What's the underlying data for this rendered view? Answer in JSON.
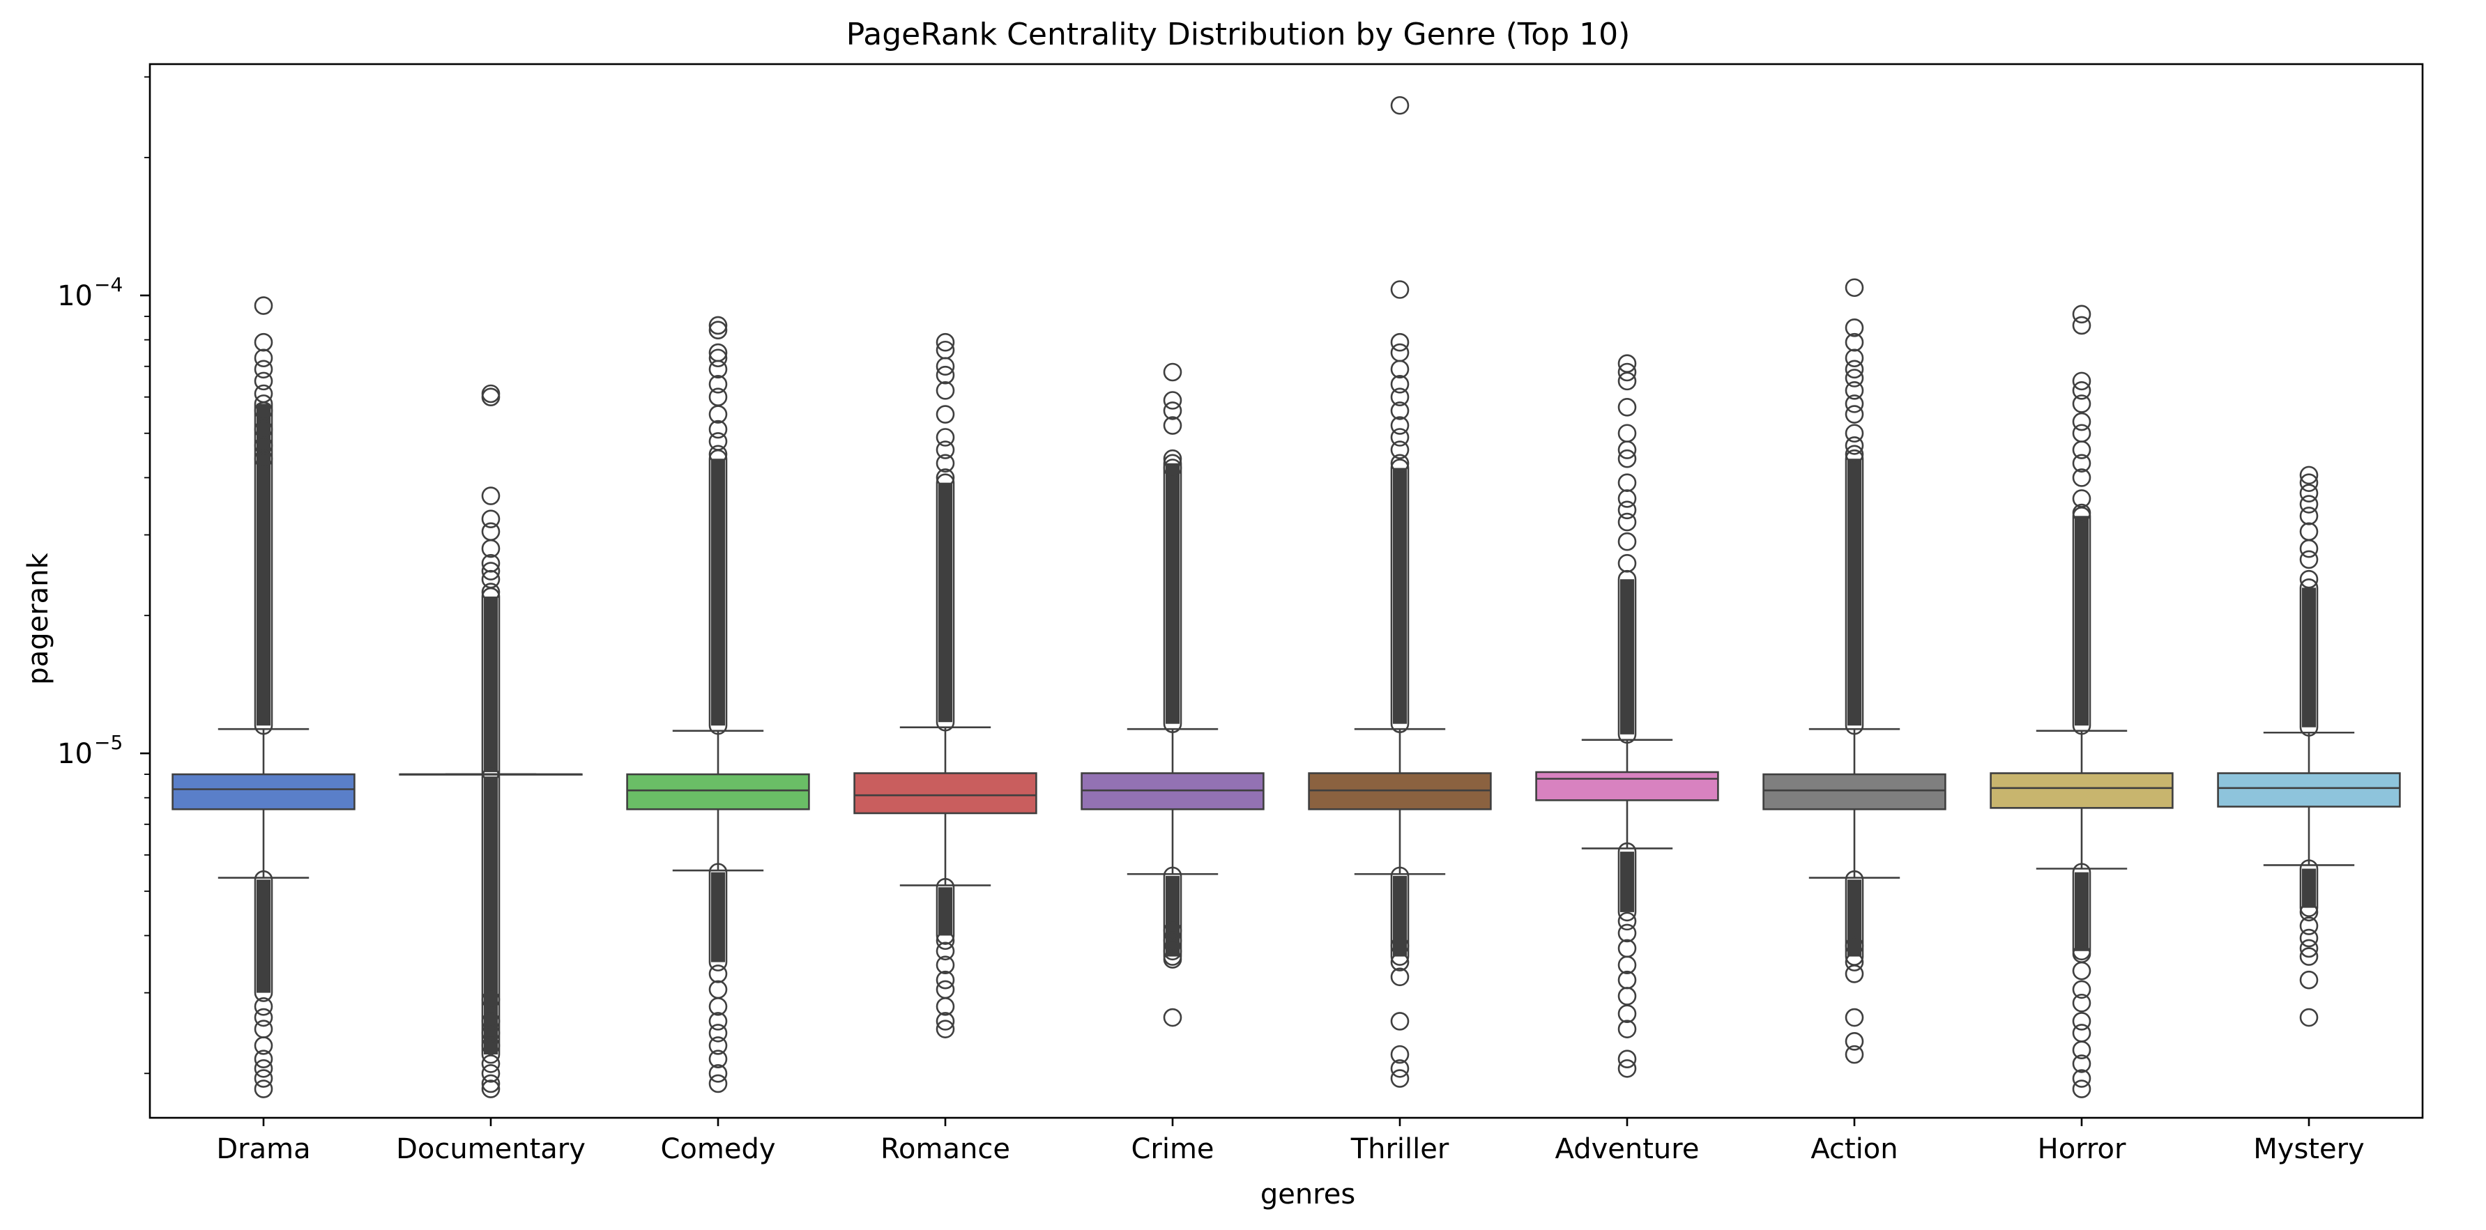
{
  "chart_data": {
    "type": "box",
    "title": "PageRank Centrality Distribution by Genre (Top 10)",
    "xlabel": "genres",
    "ylabel": "pagerank",
    "yscale": "log",
    "ylim": [
      1.6e-06,
      0.00032
    ],
    "y_major_ticks": [
      {
        "value": 1e-05,
        "base": "10",
        "exp": "−5"
      },
      {
        "value": 0.0001,
        "base": "10",
        "exp": "−4"
      }
    ],
    "grid": false,
    "categories": [
      "Drama",
      "Documentary",
      "Comedy",
      "Romance",
      "Crime",
      "Thriller",
      "Adventure",
      "Action",
      "Horror",
      "Mystery"
    ],
    "boxes": [
      {
        "name": "Drama",
        "color": "#5a7fc9",
        "q1": 7.55e-06,
        "median": 8.35e-06,
        "q3": 9e-06,
        "whisker_low": 5.35e-06,
        "whisker_high": 1.13e-05,
        "outliers_high": [
          9.5e-05,
          7.9e-05,
          7.3e-05,
          6.9e-05,
          6.5e-05,
          6.1e-05,
          5.6e-05,
          5.1e-05,
          4.7e-05,
          4.4e-05
        ],
        "high_band": [
          1.15e-05,
          5.8e-05
        ],
        "outliers_low": [
          1.85e-06,
          1.95e-06,
          2.05e-06,
          2.15e-06,
          2.3e-06,
          2.5e-06,
          2.65e-06,
          2.8e-06
        ],
        "low_band": [
          3e-06,
          5.3e-06
        ]
      },
      {
        "name": "Documentary",
        "color": "#4c72b0",
        "q1": 9e-06,
        "median": 9e-06,
        "q3": 9e-06,
        "whisker_low": 9e-06,
        "whisker_high": 9e-06,
        "outliers_high": [
          6.1e-05,
          6e-05,
          3.65e-05,
          3.25e-05,
          3.05e-05,
          2.8e-05,
          2.6e-05,
          2.5e-05,
          2.4e-05,
          2.25e-05
        ],
        "high_band": [
          9.1e-06,
          2.2e-05
        ],
        "outliers_low": [
          1.85e-06,
          1.9e-06,
          2e-06,
          2.1e-06,
          2.3e-06,
          2.45e-06,
          2.6e-06,
          2.9e-06
        ],
        "low_band": [
          2.2e-06,
          8.9e-06
        ]
      },
      {
        "name": "Comedy",
        "color": "#6abe66",
        "q1": 7.55e-06,
        "median": 8.3e-06,
        "q3": 9e-06,
        "whisker_low": 5.55e-06,
        "whisker_high": 1.12e-05,
        "outliers_high": [
          8.6e-05,
          8.4e-05,
          7.5e-05,
          7.3e-05,
          6.9e-05,
          6.4e-05,
          6e-05,
          5.5e-05,
          5.1e-05,
          4.8e-05,
          4.5e-05
        ],
        "high_band": [
          1.15e-05,
          4.4e-05
        ],
        "outliers_low": [
          1.9e-06,
          2e-06,
          2.15e-06,
          2.3e-06,
          2.45e-06,
          2.6e-06,
          2.8e-06,
          3.05e-06,
          3.3e-06
        ],
        "low_band": [
          3.5e-06,
          5.5e-06
        ]
      },
      {
        "name": "Romance",
        "color": "#c95e5e",
        "q1": 7.4e-06,
        "median": 8.1e-06,
        "q3": 9.05e-06,
        "whisker_low": 5.15e-06,
        "whisker_high": 1.14e-05,
        "outliers_high": [
          7.9e-05,
          7.6e-05,
          7e-05,
          6.7e-05,
          6.2e-05,
          5.5e-05,
          4.9e-05,
          4.6e-05,
          4.3e-05,
          4e-05
        ],
        "high_band": [
          1.17e-05,
          3.9e-05
        ],
        "outliers_low": [
          2.5e-06,
          2.6e-06,
          2.8e-06,
          3.05e-06,
          3.2e-06,
          3.45e-06,
          3.7e-06,
          3.9e-06
        ],
        "low_band": [
          4e-06,
          5.1e-06
        ]
      },
      {
        "name": "Crime",
        "color": "#9372b3",
        "q1": 7.55e-06,
        "median": 8.3e-06,
        "q3": 9.05e-06,
        "whisker_low": 5.45e-06,
        "whisker_high": 1.13e-05,
        "outliers_high": [
          6.8e-05,
          5.9e-05,
          5.6e-05,
          5.2e-05,
          4.4e-05,
          4.2e-05
        ],
        "high_band": [
          1.16e-05,
          4.3e-05
        ],
        "outliers_low": [
          2.65e-06,
          3.55e-06,
          3.7e-06,
          3.9e-06,
          4.1e-06
        ],
        "low_band": [
          3.6e-06,
          5.4e-06
        ]
      },
      {
        "name": "Thriller",
        "color": "#8b6240",
        "q1": 7.55e-06,
        "median": 8.3e-06,
        "q3": 9.05e-06,
        "whisker_low": 5.45e-06,
        "whisker_high": 1.13e-05,
        "outliers_high": [
          0.00026,
          0.000103,
          7.9e-05,
          7.5e-05,
          6.9e-05,
          6.4e-05,
          6e-05,
          5.6e-05,
          5.2e-05,
          4.9e-05,
          4.6e-05,
          4.3e-05
        ],
        "high_band": [
          1.16e-05,
          4.2e-05
        ],
        "outliers_low": [
          1.95e-06,
          2.05e-06,
          2.2e-06,
          2.6e-06,
          3.25e-06,
          3.5e-06,
          3.8e-06
        ],
        "low_band": [
          3.6e-06,
          5.4e-06
        ]
      },
      {
        "name": "Adventure",
        "color": "#d882c0",
        "q1": 7.9e-06,
        "median": 8.8e-06,
        "q3": 9.1e-06,
        "whisker_low": 6.2e-06,
        "whisker_high": 1.07e-05,
        "outliers_high": [
          7.1e-05,
          6.8e-05,
          6.5e-05,
          5.7e-05,
          5e-05,
          4.6e-05,
          4.4e-05,
          3.9e-05,
          3.6e-05,
          3.4e-05,
          3.2e-05,
          2.9e-05,
          2.6e-05
        ],
        "high_band": [
          1.1e-05,
          2.4e-05
        ],
        "outliers_low": [
          2.05e-06,
          2.15e-06,
          2.5e-06,
          2.7e-06,
          2.95e-06,
          3.2e-06,
          3.45e-06,
          3.75e-06,
          4.05e-06,
          4.3e-06
        ],
        "low_band": [
          4.5e-06,
          6.1e-06
        ]
      },
      {
        "name": "Action",
        "color": "#7f7f7f",
        "q1": 7.55e-06,
        "median": 8.3e-06,
        "q3": 9e-06,
        "whisker_low": 5.35e-06,
        "whisker_high": 1.13e-05,
        "outliers_high": [
          0.000104,
          8.5e-05,
          7.9e-05,
          7.3e-05,
          6.9e-05,
          6.6e-05,
          6.2e-05,
          5.8e-05,
          5.5e-05,
          5e-05,
          4.7e-05,
          4.5e-05
        ],
        "high_band": [
          1.15e-05,
          4.4e-05
        ],
        "outliers_low": [
          2.2e-06,
          2.35e-06,
          2.65e-06,
          3.3e-06,
          3.5e-06,
          3.8e-06
        ],
        "low_band": [
          3.6e-06,
          5.3e-06
        ]
      },
      {
        "name": "Horror",
        "color": "#c8b56e",
        "q1": 7.6e-06,
        "median": 8.4e-06,
        "q3": 9.05e-06,
        "whisker_low": 5.6e-06,
        "whisker_high": 1.12e-05,
        "outliers_high": [
          9.1e-05,
          8.6e-05,
          6.5e-05,
          6.2e-05,
          5.8e-05,
          5.3e-05,
          5e-05,
          4.6e-05,
          4.3e-05,
          4e-05,
          3.6e-05,
          3.35e-05
        ],
        "high_band": [
          1.15e-05,
          3.3e-05
        ],
        "outliers_low": [
          1.85e-06,
          1.95e-06,
          2.1e-06,
          2.25e-06,
          2.45e-06,
          2.6e-06,
          2.85e-06,
          3.05e-06,
          3.35e-06,
          3.65e-06
        ],
        "low_band": [
          3.7e-06,
          5.5e-06
        ]
      },
      {
        "name": "Mystery",
        "color": "#8ec4dc",
        "q1": 7.65e-06,
        "median": 8.4e-06,
        "q3": 9.05e-06,
        "whisker_low": 5.7e-06,
        "whisker_high": 1.11e-05,
        "outliers_high": [
          4.05e-05,
          3.9e-05,
          3.7e-05,
          3.5e-05,
          3.3e-05,
          3.05e-05,
          2.8e-05,
          2.65e-05,
          2.4e-05
        ],
        "high_band": [
          1.14e-05,
          2.3e-05
        ],
        "outliers_low": [
          2.65e-06,
          3.2e-06,
          3.6e-06,
          3.75e-06,
          3.95e-06,
          4.2e-06,
          4.5e-06
        ],
        "low_band": [
          4.6e-06,
          5.6e-06
        ]
      }
    ]
  }
}
